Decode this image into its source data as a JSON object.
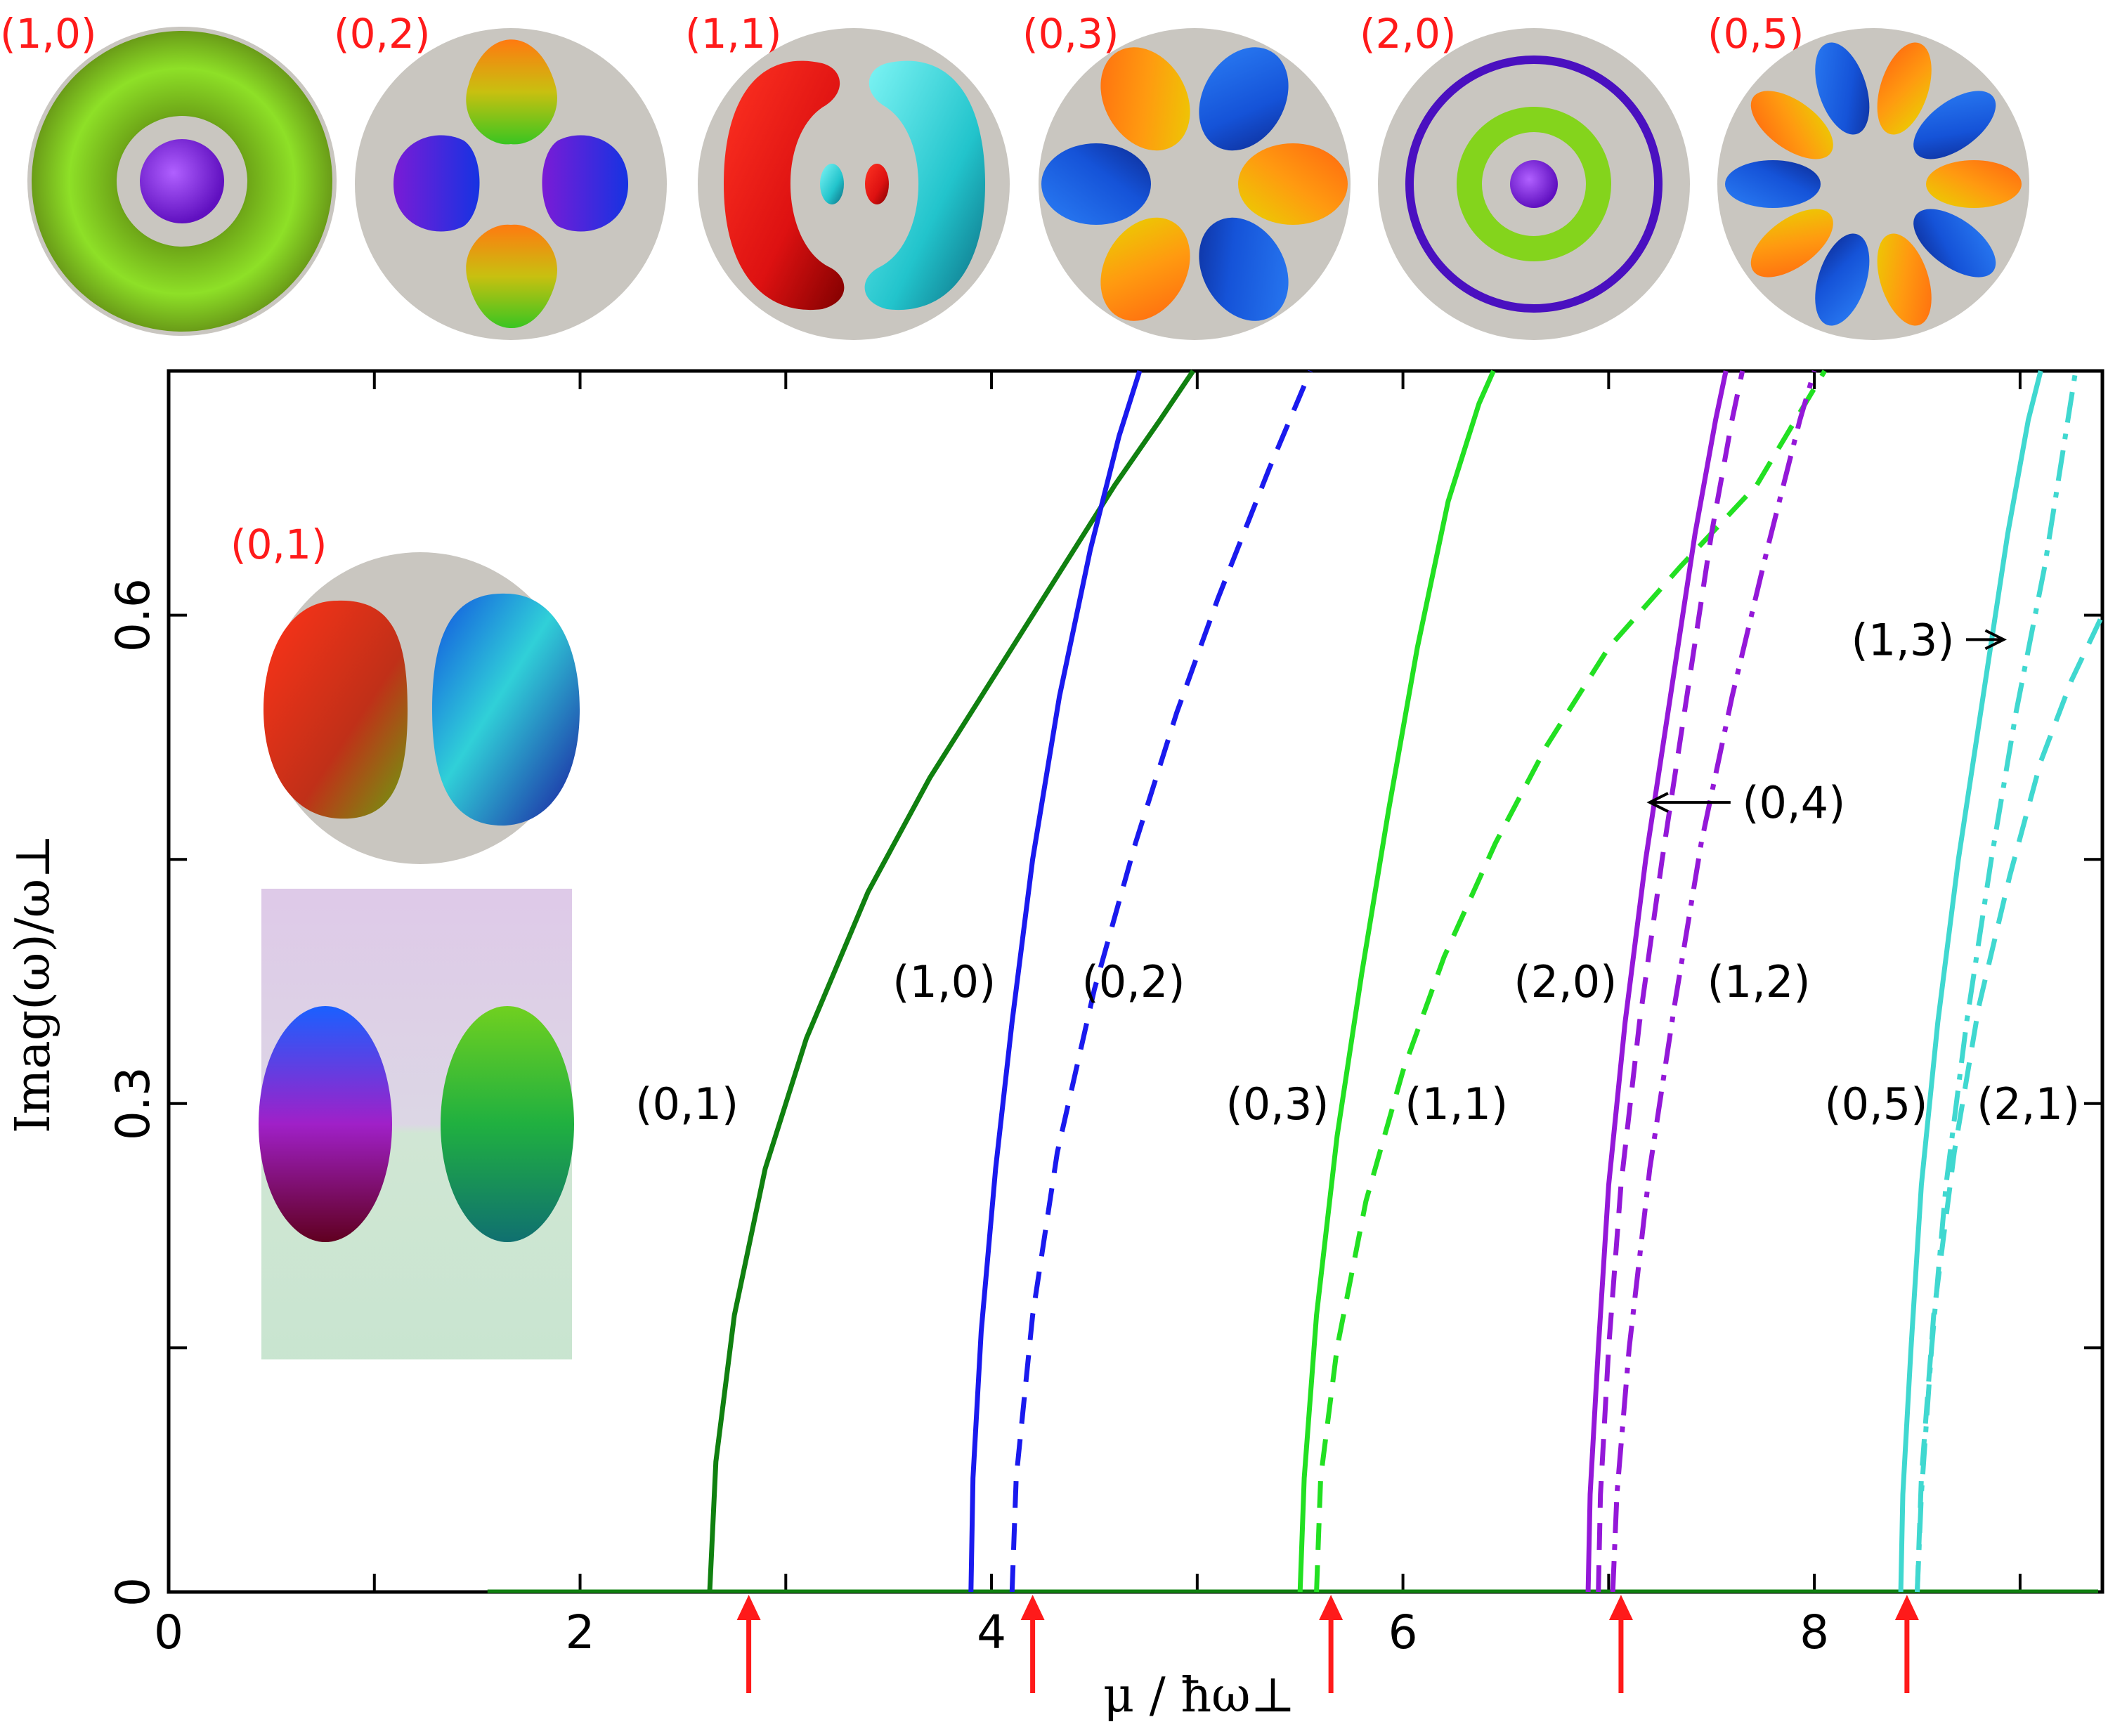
{
  "chart_data": {
    "type": "line",
    "title": "",
    "xlabel": "μ / ħω⊥",
    "ylabel": "Imag(ω)/ω⊥",
    "xlim": [
      0,
      9.4
    ],
    "ylim": [
      0,
      0.75
    ],
    "xticks": [
      0,
      2,
      4,
      6,
      8
    ],
    "xtick_labels": [
      "0",
      "2",
      "4",
      "6",
      "8"
    ],
    "yticks": [
      0,
      0.3,
      0.6
    ],
    "ytick_labels": [
      "0",
      "0.3",
      "0.6"
    ],
    "grid": false,
    "series": [
      {
        "name": "(0,1)",
        "color": "#108010",
        "style": "solid",
        "x": [
          2.63,
          2.66,
          2.75,
          2.9,
          3.1,
          3.4,
          3.7,
          4.0,
          4.3,
          4.6,
          4.82,
          4.98
        ],
        "y": [
          0,
          0.08,
          0.17,
          0.26,
          0.34,
          0.43,
          0.5,
          0.56,
          0.62,
          0.68,
          0.72,
          0.75
        ]
      },
      {
        "name": "(1,0)",
        "color": "#1a1aee",
        "style": "solid",
        "x": [
          3.9,
          3.91,
          3.95,
          4.02,
          4.1,
          4.2,
          4.33,
          4.48,
          4.62,
          4.72
        ],
        "y": [
          0,
          0.07,
          0.16,
          0.26,
          0.35,
          0.45,
          0.55,
          0.64,
          0.71,
          0.75
        ]
      },
      {
        "name": "(0,2)",
        "color": "#1a1aee",
        "style": "dashed",
        "x": [
          4.1,
          4.12,
          4.2,
          4.32,
          4.5,
          4.7,
          4.9,
          5.1,
          5.35,
          5.55
        ],
        "y": [
          0,
          0.07,
          0.17,
          0.27,
          0.37,
          0.46,
          0.54,
          0.61,
          0.69,
          0.75
        ]
      },
      {
        "name": "(0,3)",
        "color": "#22e022",
        "style": "solid",
        "x": [
          5.5,
          5.52,
          5.58,
          5.68,
          5.8,
          5.93,
          6.07,
          6.22,
          6.37,
          6.44
        ],
        "y": [
          0,
          0.07,
          0.17,
          0.28,
          0.38,
          0.48,
          0.58,
          0.67,
          0.73,
          0.75
        ]
      },
      {
        "name": "(1,1)",
        "color": "#22e022",
        "style": "dashed",
        "x": [
          5.58,
          5.6,
          5.68,
          5.82,
          6.0,
          6.2,
          6.45,
          6.7,
          7.0,
          7.35,
          7.72,
          8.05
        ],
        "y": [
          0,
          0.07,
          0.15,
          0.24,
          0.32,
          0.39,
          0.46,
          0.52,
          0.58,
          0.63,
          0.68,
          0.75
        ]
      },
      {
        "name": "(2,0)",
        "color": "#9418d8",
        "style": "solid",
        "x": [
          6.9,
          6.91,
          6.95,
          7.0,
          7.08,
          7.18,
          7.3,
          7.42,
          7.52,
          7.57
        ],
        "y": [
          0,
          0.06,
          0.15,
          0.25,
          0.35,
          0.45,
          0.55,
          0.65,
          0.72,
          0.75
        ]
      },
      {
        "name": "(0,4)",
        "color": "#9418d8",
        "style": "dashed",
        "x": [
          6.95,
          6.96,
          7.0,
          7.06,
          7.15,
          7.26,
          7.38,
          7.5,
          7.6,
          7.65
        ],
        "y": [
          0,
          0.06,
          0.15,
          0.25,
          0.35,
          0.45,
          0.55,
          0.65,
          0.72,
          0.75
        ]
      },
      {
        "name": "(1,2)",
        "color": "#9418d8",
        "style": "dashdot",
        "x": [
          7.02,
          7.04,
          7.1,
          7.2,
          7.32,
          7.45,
          7.6,
          7.77,
          7.93,
          8.0
        ],
        "y": [
          0,
          0.06,
          0.15,
          0.26,
          0.36,
          0.46,
          0.55,
          0.64,
          0.72,
          0.75
        ]
      },
      {
        "name": "(0,5)",
        "color": "#40d8d0",
        "style": "solid",
        "x": [
          8.42,
          8.43,
          8.47,
          8.52,
          8.6,
          8.7,
          8.82,
          8.94,
          9.04,
          9.1
        ],
        "y": [
          0,
          0.06,
          0.15,
          0.25,
          0.35,
          0.45,
          0.55,
          0.65,
          0.72,
          0.75
        ]
      },
      {
        "name": "(1,3)",
        "color": "#40d8d0",
        "style": "dashdot",
        "x": [
          8.5,
          8.52,
          8.57,
          8.64,
          8.74,
          8.86,
          8.98,
          9.12,
          9.22,
          9.27
        ],
        "y": [
          0,
          0.06,
          0.15,
          0.25,
          0.35,
          0.45,
          0.54,
          0.63,
          0.71,
          0.75
        ]
      },
      {
        "name": "(2,1)",
        "color": "#40d8d0",
        "style": "dashed",
        "x": [
          8.5,
          8.52,
          8.58,
          8.68,
          8.8,
          8.95,
          9.1,
          9.25,
          9.4
        ],
        "y": [
          0,
          0.07,
          0.17,
          0.27,
          0.36,
          0.44,
          0.51,
          0.56,
          0.6
        ]
      }
    ],
    "curve_labels": [
      {
        "text": "(0,1)",
        "x": 2.52,
        "y": 0.3
      },
      {
        "text": "(1,0)",
        "x": 3.77,
        "y": 0.375
      },
      {
        "text": "(0,2)",
        "x": 4.69,
        "y": 0.375
      },
      {
        "text": "(0,3)",
        "x": 5.39,
        "y": 0.3
      },
      {
        "text": "(1,1)",
        "x": 6.26,
        "y": 0.3
      },
      {
        "text": "(2,0)",
        "x": 6.79,
        "y": 0.375
      },
      {
        "text": "(1,2)",
        "x": 7.73,
        "y": 0.375
      },
      {
        "text": "(0,5)",
        "x": 8.3,
        "y": 0.3
      },
      {
        "text": "(2,1)",
        "x": 9.04,
        "y": 0.3
      }
    ],
    "arrow_labels": [
      {
        "text": "(0,4)",
        "x": 7.9,
        "y": 0.485,
        "target_x": 7.2,
        "target_y": 0.485
      },
      {
        "text": "(1,3)",
        "x": 8.43,
        "y": 0.585,
        "target_x": 8.92,
        "target_y": 0.585
      }
    ],
    "threshold_arrows_x": [
      2.82,
      4.2,
      5.65,
      7.06,
      8.45
    ],
    "threshold_color": "#ff1a1a",
    "mode_images": [
      {
        "label": "(1,0)"
      },
      {
        "label": "(0,2)"
      },
      {
        "label": "(1,1)"
      },
      {
        "label": "(0,3)"
      },
      {
        "label": "(2,0)"
      },
      {
        "label": "(0,5)"
      }
    ],
    "inset_label": "(0,1)"
  }
}
